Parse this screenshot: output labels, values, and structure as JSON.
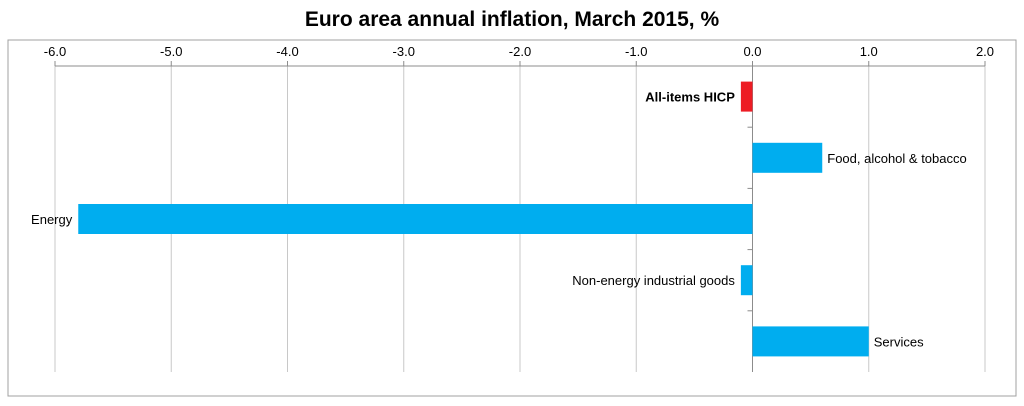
{
  "chart_data": {
    "type": "bar",
    "orientation": "horizontal",
    "title": "Euro area annual inflation, March 2015, %",
    "xlim": [
      -6.0,
      2.0
    ],
    "x_ticks": [
      "-6.0",
      "-5.0",
      "-4.0",
      "-3.0",
      "-2.0",
      "-1.0",
      "0.0",
      "1.0",
      "2.0"
    ],
    "x_tick_values": [
      -6,
      -5,
      -4,
      -3,
      -2,
      -1,
      0,
      1,
      2
    ],
    "axis_position": "top",
    "grid": true,
    "categories": [
      "All-items HICP",
      "Food, alcohol & tobacco",
      "Energy",
      "Non-energy industrial goods",
      "Services"
    ],
    "values": [
      -0.1,
      0.6,
      -5.8,
      -0.1,
      1.0
    ],
    "colors": [
      "#ed1c24",
      "#00adef",
      "#00adef",
      "#00adef",
      "#00adef"
    ],
    "highlight": [
      "All-items HICP"
    ]
  }
}
